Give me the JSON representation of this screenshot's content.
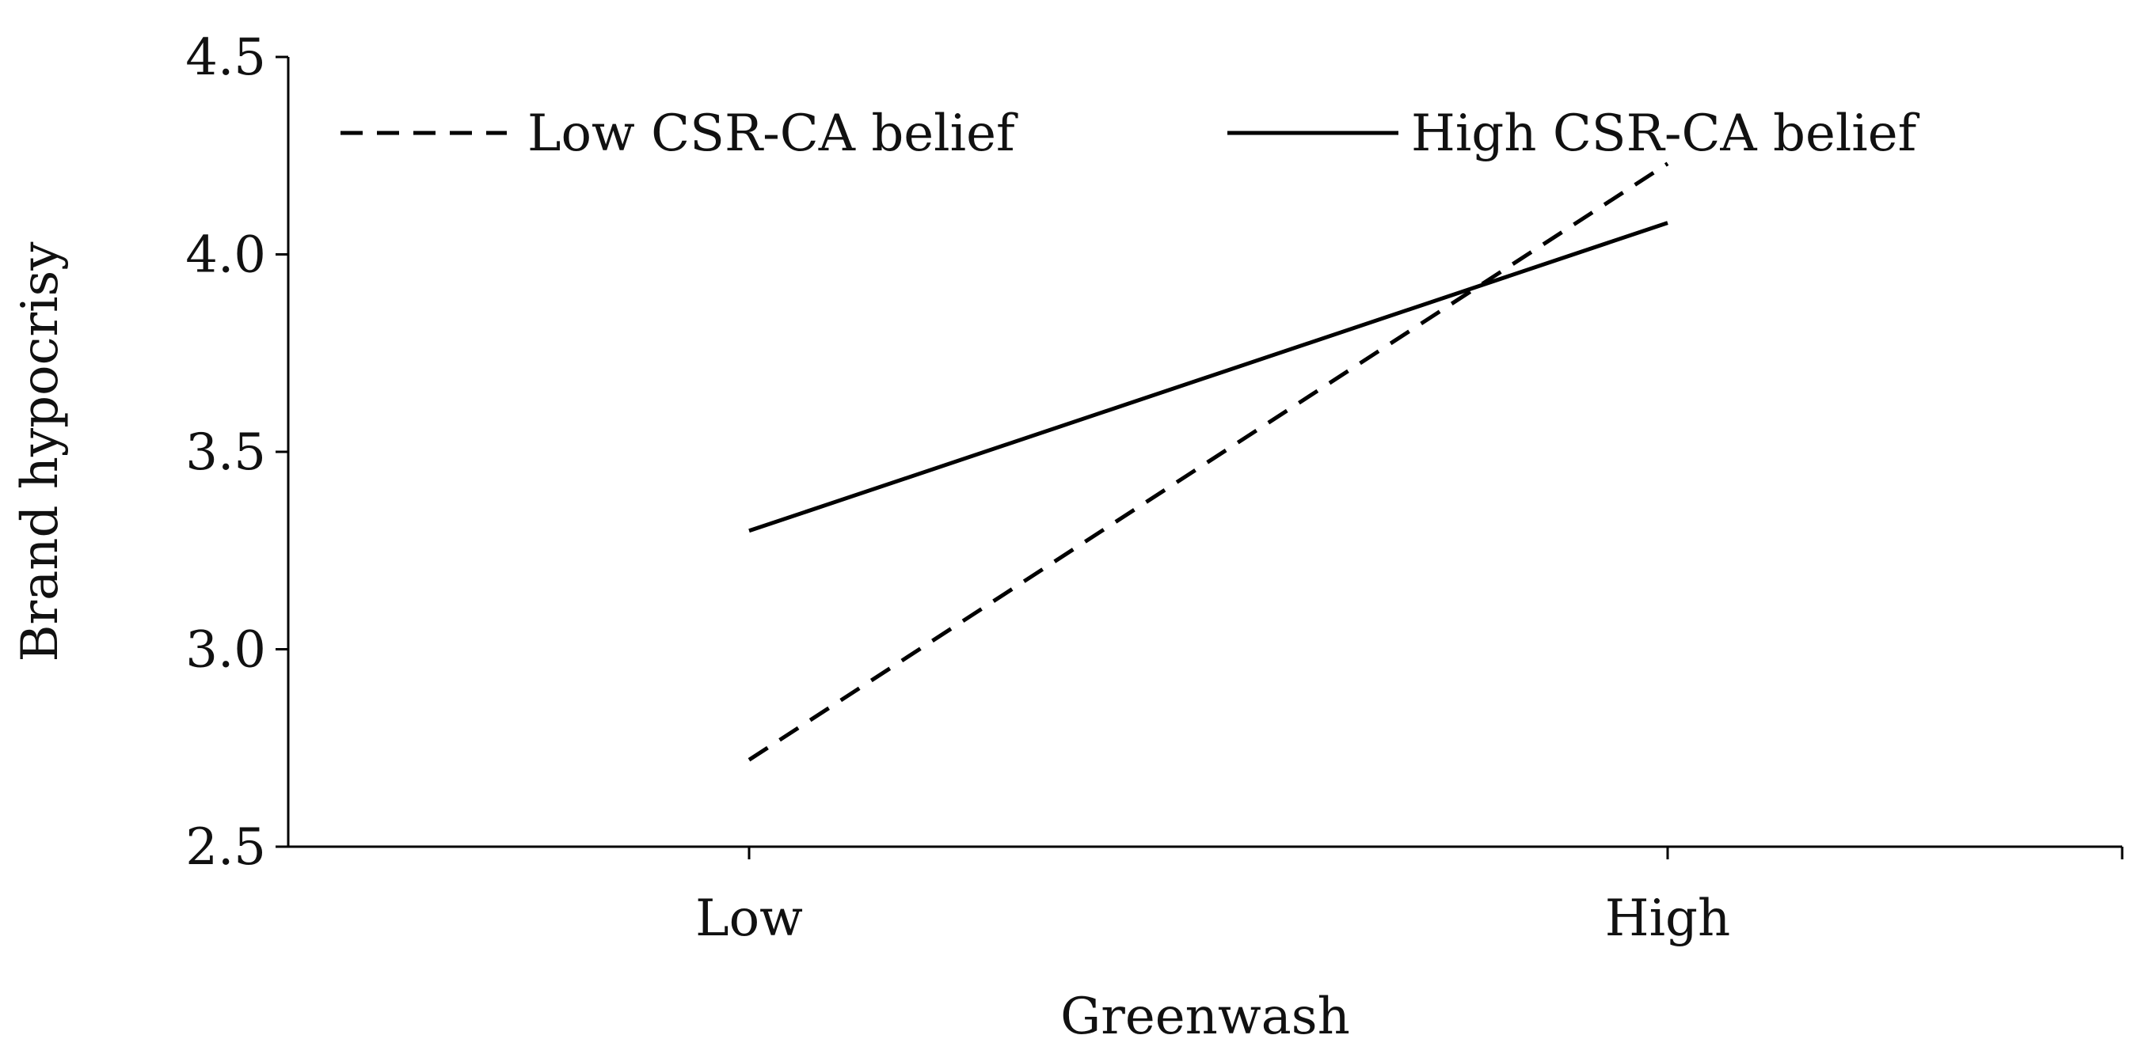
{
  "chart_data": {
    "type": "line",
    "title": "",
    "xlabel": "Greenwash",
    "ylabel": "Brand hypocrisy",
    "categories": [
      "Low",
      "High"
    ],
    "ylim": [
      2.5,
      4.5
    ],
    "yticks": [
      "2.5",
      "3.0",
      "3.5",
      "4.0",
      "4.5"
    ],
    "grid": false,
    "legend_position": "top",
    "series": [
      {
        "name": "Low CSR-CA belief",
        "values": [
          2.72,
          4.23
        ],
        "style": "dashed"
      },
      {
        "name": "High CSR-CA belief",
        "values": [
          3.3,
          4.08
        ],
        "style": "solid"
      }
    ],
    "colors": {
      "line": "#000000",
      "axis": "#000000"
    }
  }
}
